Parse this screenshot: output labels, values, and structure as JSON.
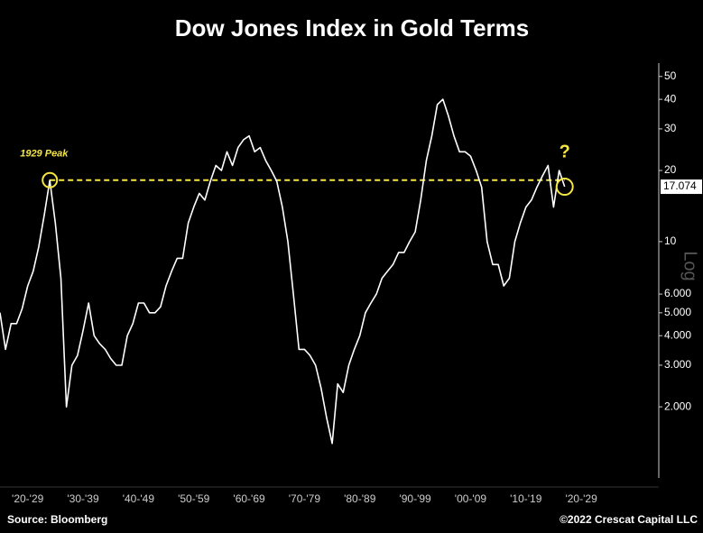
{
  "chart_data": {
    "type": "line",
    "title": "Dow Jones Index in Gold Terms",
    "x": [
      1920,
      1921,
      1922,
      1923,
      1924,
      1925,
      1926,
      1927,
      1928,
      1929,
      1930,
      1931,
      1932,
      1933,
      1934,
      1935,
      1936,
      1937,
      1938,
      1939,
      1940,
      1941,
      1942,
      1943,
      1944,
      1945,
      1946,
      1947,
      1948,
      1949,
      1950,
      1951,
      1952,
      1953,
      1954,
      1955,
      1956,
      1957,
      1958,
      1959,
      1960,
      1961,
      1962,
      1963,
      1964,
      1965,
      1966,
      1967,
      1968,
      1969,
      1970,
      1971,
      1972,
      1973,
      1974,
      1975,
      1976,
      1977,
      1978,
      1979,
      1980,
      1981,
      1982,
      1983,
      1984,
      1985,
      1986,
      1987,
      1988,
      1989,
      1990,
      1991,
      1992,
      1993,
      1994,
      1995,
      1996,
      1997,
      1998,
      1999,
      2000,
      2001,
      2002,
      2003,
      2004,
      2005,
      2006,
      2007,
      2008,
      2009,
      2010,
      2011,
      2012,
      2013,
      2014,
      2015,
      2016,
      2017,
      2018,
      2019,
      2020,
      2021,
      2022
    ],
    "series": [
      {
        "name": "Dow Jones / Gold",
        "color": "#ffffff",
        "values": [
          5,
          3.5,
          4.5,
          4.5,
          5.2,
          6.5,
          7.5,
          9.5,
          13,
          18.2,
          12,
          7,
          2.0,
          3.0,
          3.3,
          4.2,
          5.5,
          4.0,
          3.7,
          3.5,
          3.2,
          3.0,
          3.0,
          4.0,
          4.5,
          5.5,
          5.5,
          5.0,
          5.0,
          5.3,
          6.5,
          7.5,
          8.5,
          8.5,
          12,
          14,
          16,
          15,
          18,
          21,
          20,
          24,
          21,
          25,
          27,
          28,
          24,
          25,
          22,
          20,
          18,
          14,
          10,
          6,
          3.5,
          3.5,
          3.3,
          3.0,
          2.4,
          1.8,
          1.4,
          2.5,
          2.3,
          3.0,
          3.5,
          4.0,
          5.0,
          5.5,
          6.0,
          7.0,
          7.5,
          8.0,
          9.0,
          9.0,
          10,
          11,
          15,
          22,
          28,
          38,
          40,
          34,
          28,
          24,
          24,
          23,
          20,
          17,
          10,
          8,
          8,
          6.5,
          7,
          10,
          12,
          14,
          15,
          17,
          19,
          21,
          14,
          20,
          17.074
        ]
      }
    ],
    "xlim": [
      1920,
      2039
    ],
    "xticks": [
      {
        "value": 1925,
        "label": "'20-'29"
      },
      {
        "value": 1935,
        "label": "'30-'39"
      },
      {
        "value": 1945,
        "label": "'40-'49"
      },
      {
        "value": 1955,
        "label": "'50-'59"
      },
      {
        "value": 1965,
        "label": "'60-'69"
      },
      {
        "value": 1975,
        "label": "'70-'79"
      },
      {
        "value": 1985,
        "label": "'80-'89"
      },
      {
        "value": 1995,
        "label": "'90-'99"
      },
      {
        "value": 2005,
        "label": "'00-'09"
      },
      {
        "value": 2015,
        "label": "'10-'19"
      },
      {
        "value": 2025,
        "label": "'20-'29"
      }
    ],
    "ylim": [
      1,
      60
    ],
    "log_scale": true,
    "yticks": [
      50,
      40,
      30,
      20,
      10,
      {
        "value": 6,
        "label": "6.000"
      },
      {
        "value": 5,
        "label": "5.000"
      },
      {
        "value": 4,
        "label": "4.000"
      },
      {
        "value": 3,
        "label": "3.000"
      },
      {
        "value": 2,
        "label": "2.000"
      }
    ],
    "y_axis_label": "Log",
    "last_value_label": {
      "value": 17.074,
      "label": "17.074"
    },
    "reference_line": {
      "value": 18.2,
      "color": "#f5e642"
    },
    "annotations": {
      "peak": "1929 Peak",
      "question": "?"
    },
    "source": "Source: Bloomberg",
    "credit": "©2022 Crescat Capital LLC"
  }
}
